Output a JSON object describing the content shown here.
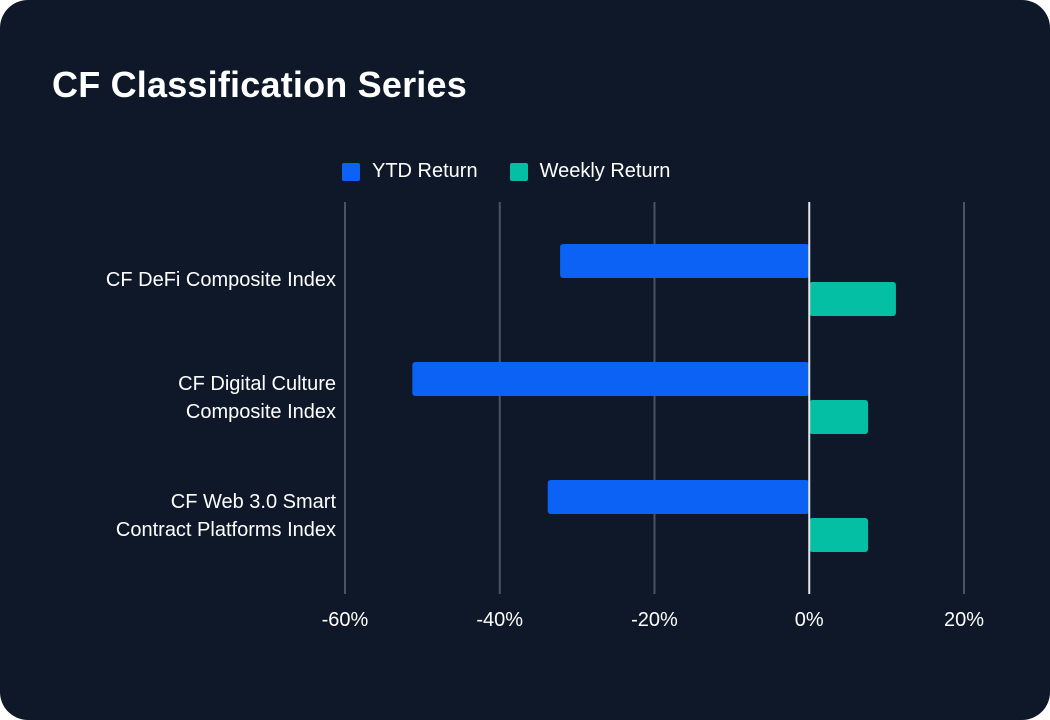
{
  "title": "CF Classification Series",
  "legend": [
    {
      "label": "YTD Return",
      "color": "#0b62f5"
    },
    {
      "label": "Weekly Return",
      "color": "#05bfa5"
    }
  ],
  "colors": {
    "background": "#0f1829",
    "grid": "#4b5260",
    "zero_line": "#e6e6e6"
  },
  "chart_data": {
    "type": "bar",
    "orientation": "horizontal",
    "categories": [
      [
        "CF DeFi Composite Index"
      ],
      [
        "CF Digital Culture",
        "Composite Index"
      ],
      [
        "CF Web 3.0 Smart",
        "Contract Platforms Index"
      ]
    ],
    "series": [
      {
        "name": "YTD Return",
        "color": "#0b62f5",
        "values": [
          -32.2,
          -51.3,
          -33.8
        ]
      },
      {
        "name": "Weekly Return",
        "color": "#05bfa5",
        "values": [
          11.2,
          7.6,
          7.6
        ]
      }
    ],
    "xlim": [
      -60,
      20
    ],
    "xticks": [
      -60,
      -40,
      -20,
      0,
      20
    ],
    "xtick_labels": [
      "-60%",
      "-40%",
      "-20%",
      "0%",
      "20%"
    ],
    "grid": true,
    "legend_position": "top"
  }
}
